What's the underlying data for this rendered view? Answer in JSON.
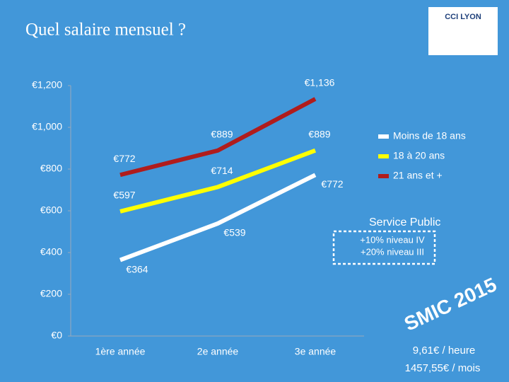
{
  "chart_data": {
    "type": "line",
    "title": "Quel salaire mensuel ?",
    "categories": [
      "1ère année",
      "2e année",
      "3e année"
    ],
    "series": [
      {
        "name": "Moins de 18 ans",
        "color": "#ffffff",
        "values": [
          364,
          539,
          772
        ],
        "value_labels": [
          "€364",
          "€539",
          "€772"
        ]
      },
      {
        "name": "18 à 20 ans",
        "color": "#ffff00",
        "values": [
          597,
          714,
          889
        ],
        "value_labels": [
          "€597",
          "€714",
          "€889"
        ]
      },
      {
        "name": "21 ans et +",
        "color": "#b01c1c",
        "values": [
          772,
          889,
          1136
        ],
        "value_labels": [
          "€772",
          "€889",
          "€1,136"
        ]
      }
    ],
    "ylim": [
      0,
      1200
    ],
    "yticks": [
      {
        "value": 0,
        "label": "€0"
      },
      {
        "value": 200,
        "label": "€200"
      },
      {
        "value": 400,
        "label": "€400"
      },
      {
        "value": 600,
        "label": "€600"
      },
      {
        "value": 800,
        "label": "€800"
      },
      {
        "value": 1000,
        "label": "€1,000"
      },
      {
        "value": 1200,
        "label": "€1,200"
      }
    ],
    "grid": false,
    "annotations": [
      "Service Public",
      "+10% niveau IV",
      "+20% niveau III",
      "SMIC 2015",
      "9,61€ / heure",
      "1457,55€ / mois"
    ],
    "logo": "CCI LYON"
  }
}
